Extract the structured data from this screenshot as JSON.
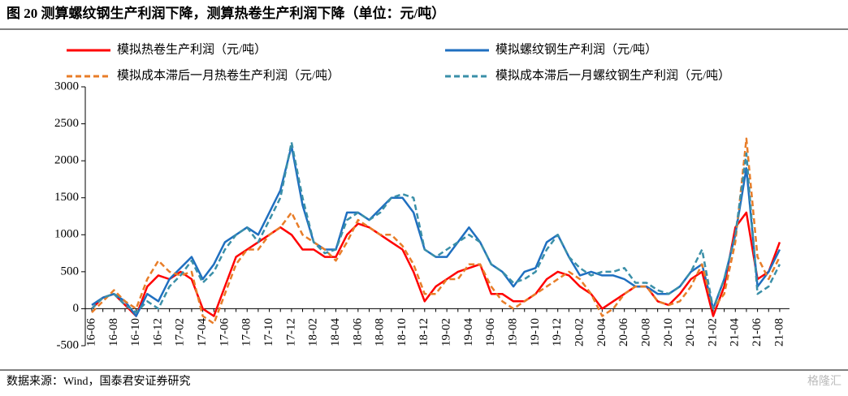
{
  "chart_data": {
    "type": "line",
    "title": "图 20 测算螺纹钢生产利润下降，测算热卷生产利润下降（单位：元/吨）",
    "source": "数据来源：Wind，国泰君安证券研究",
    "watermark": "格隆汇",
    "categories": [
      "16-06",
      null,
      "16-08",
      null,
      "16-10",
      null,
      "16-12",
      null,
      "17-02",
      null,
      "17-04",
      null,
      "17-06",
      null,
      "17-08",
      null,
      "17-10",
      null,
      "17-12",
      null,
      "18-02",
      null,
      "18-04",
      null,
      "18-06",
      null,
      "18-08",
      null,
      "18-10",
      null,
      "18-12",
      null,
      "19-02",
      null,
      "19-04",
      null,
      "19-06",
      null,
      "19-08",
      null,
      "19-10",
      null,
      "19-12",
      null,
      "20-02",
      null,
      "20-04",
      null,
      "20-06",
      null,
      "20-08",
      null,
      "20-10",
      null,
      "20-12",
      null,
      "21-02",
      null,
      "21-04",
      null,
      "21-06",
      null,
      "21-08"
    ],
    "ylim": [
      -500,
      3000
    ],
    "yticks": [
      -500,
      0,
      500,
      1000,
      1500,
      2000,
      2500,
      3000
    ],
    "series": [
      {
        "name": "模拟热卷生产利润（元/吨）",
        "color": "#ff0000",
        "style": "solid",
        "values": [
          0,
          150,
          200,
          50,
          -100,
          300,
          450,
          400,
          500,
          400,
          0,
          -100,
          300,
          700,
          800,
          900,
          1000,
          1100,
          1000,
          800,
          800,
          700,
          700,
          1000,
          1150,
          1100,
          1000,
          900,
          800,
          500,
          100,
          300,
          400,
          500,
          550,
          600,
          200,
          200,
          100,
          100,
          200,
          400,
          500,
          450,
          300,
          200,
          0,
          100,
          200,
          300,
          300,
          100,
          50,
          200,
          400,
          500,
          -100,
          300,
          1100,
          1300,
          400,
          500,
          900
        ]
      },
      {
        "name": "模拟螺纹钢生产利润（元/吨）",
        "color": "#1f6fc0",
        "style": "solid",
        "values": [
          50,
          150,
          200,
          100,
          -100,
          200,
          100,
          400,
          550,
          700,
          400,
          600,
          900,
          1000,
          1100,
          1000,
          1300,
          1600,
          2200,
          1400,
          900,
          800,
          800,
          1300,
          1300,
          1200,
          1350,
          1500,
          1500,
          1300,
          800,
          700,
          700,
          900,
          1100,
          900,
          600,
          500,
          300,
          500,
          550,
          900,
          1000,
          700,
          450,
          500,
          450,
          450,
          400,
          300,
          300,
          200,
          200,
          300,
          500,
          600,
          0,
          400,
          1000,
          1900,
          300,
          500,
          800
        ]
      },
      {
        "name": "模拟成本滞后一月热卷生产利润（元/吨）",
        "color": "#e87d28",
        "style": "dashed",
        "values": [
          -50,
          100,
          250,
          100,
          0,
          400,
          650,
          500,
          450,
          500,
          -100,
          -200,
          200,
          600,
          800,
          800,
          1000,
          1100,
          1300,
          1000,
          900,
          800,
          650,
          900,
          1200,
          1100,
          1000,
          1000,
          850,
          600,
          200,
          200,
          400,
          400,
          600,
          600,
          300,
          100,
          0,
          100,
          200,
          300,
          400,
          500,
          400,
          200,
          -100,
          0,
          200,
          300,
          300,
          100,
          50,
          100,
          300,
          600,
          0,
          200,
          900,
          2300,
          700,
          400,
          700
        ]
      },
      {
        "name": "模拟成本滞后一月螺纹钢生产利润（元/吨）",
        "color": "#3a8fa8",
        "style": "dashed",
        "values": [
          0,
          150,
          200,
          50,
          -50,
          100,
          0,
          300,
          450,
          650,
          350,
          500,
          800,
          1000,
          1100,
          900,
          1200,
          1500,
          2250,
          1500,
          900,
          750,
          800,
          1200,
          1300,
          1200,
          1300,
          1500,
          1550,
          1500,
          800,
          700,
          800,
          900,
          1000,
          900,
          600,
          500,
          350,
          400,
          500,
          800,
          1000,
          700,
          550,
          450,
          500,
          500,
          550,
          350,
          350,
          250,
          200,
          300,
          500,
          800,
          0,
          400,
          1000,
          2100,
          200,
          300,
          600
        ]
      }
    ]
  }
}
